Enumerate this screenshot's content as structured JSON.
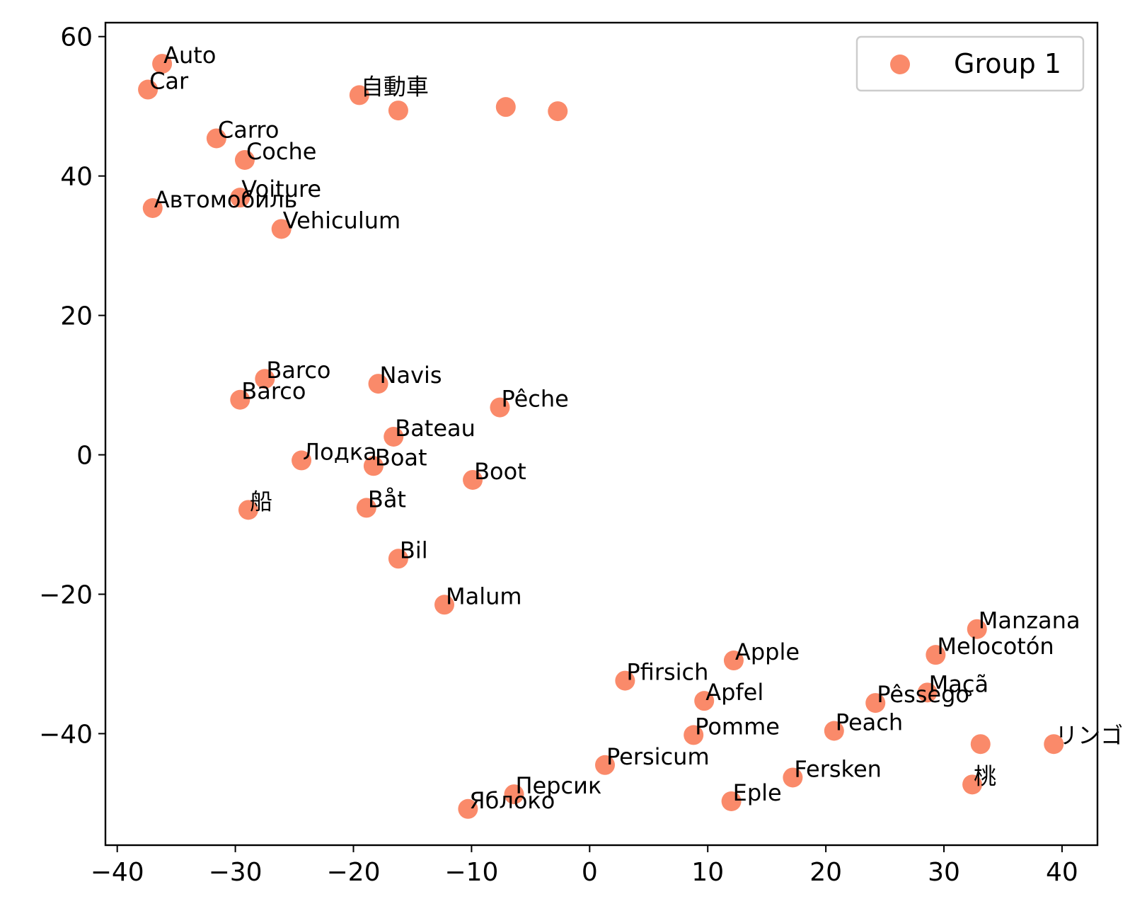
{
  "chart_data": {
    "type": "scatter",
    "title": "",
    "xlabel": "",
    "ylabel": "",
    "xlim": [
      -41,
      43
    ],
    "ylim": [
      -56,
      62
    ],
    "xticks": [
      -40,
      -30,
      -20,
      -10,
      0,
      10,
      20,
      30,
      40
    ],
    "yticks": [
      -40,
      -20,
      0,
      20,
      40,
      60
    ],
    "grid": false,
    "legend_position": "top-right",
    "series": [
      {
        "name": "Group 1",
        "color": "#fa8a6a",
        "points": [
          {
            "x": -36.2,
            "y": 56.1,
            "label": "Auto"
          },
          {
            "x": -37.4,
            "y": 52.4,
            "label": "Car"
          },
          {
            "x": -19.5,
            "y": 51.6,
            "label": "自動車"
          },
          {
            "x": -16.2,
            "y": 49.4,
            "label": ""
          },
          {
            "x": -7.1,
            "y": 49.9,
            "label": ""
          },
          {
            "x": -2.7,
            "y": 49.3,
            "label": ""
          },
          {
            "x": -31.6,
            "y": 45.4,
            "label": "Carro"
          },
          {
            "x": -29.2,
            "y": 42.3,
            "label": "Coche"
          },
          {
            "x": -29.6,
            "y": 36.9,
            "label": "Voiture"
          },
          {
            "x": -37.0,
            "y": 35.4,
            "label": "Автомобиль"
          },
          {
            "x": -26.1,
            "y": 32.4,
            "label": "Vehiculum"
          },
          {
            "x": -27.5,
            "y": 10.9,
            "label": "Barco"
          },
          {
            "x": -29.6,
            "y": 7.9,
            "label": "Barco"
          },
          {
            "x": -17.9,
            "y": 10.2,
            "label": "Navis"
          },
          {
            "x": -7.6,
            "y": 6.8,
            "label": "Pêche"
          },
          {
            "x": -16.6,
            "y": 2.6,
            "label": "Bateau"
          },
          {
            "x": -24.4,
            "y": -0.8,
            "label": "Лодка"
          },
          {
            "x": -18.3,
            "y": -1.6,
            "label": "Boat"
          },
          {
            "x": -9.9,
            "y": -3.6,
            "label": "Boot"
          },
          {
            "x": -28.9,
            "y": -7.9,
            "label": "船"
          },
          {
            "x": -18.9,
            "y": -7.6,
            "label": "Båt"
          },
          {
            "x": -16.2,
            "y": -14.9,
            "label": "Bil"
          },
          {
            "x": -12.3,
            "y": -21.5,
            "label": "Malum"
          },
          {
            "x": 32.8,
            "y": -25.0,
            "label": "Manzana"
          },
          {
            "x": 29.3,
            "y": -28.7,
            "label": "Melocotón"
          },
          {
            "x": 12.2,
            "y": -29.5,
            "label": "Apple"
          },
          {
            "x": 3.0,
            "y": -32.4,
            "label": "Pfirsich"
          },
          {
            "x": 28.6,
            "y": -34.1,
            "label": "Maçã"
          },
          {
            "x": 9.7,
            "y": -35.3,
            "label": "Apfel"
          },
          {
            "x": 24.2,
            "y": -35.6,
            "label": "Pêssego"
          },
          {
            "x": 20.7,
            "y": -39.6,
            "label": "Peach"
          },
          {
            "x": 8.8,
            "y": -40.2,
            "label": "Pomme"
          },
          {
            "x": 33.1,
            "y": -41.5,
            "label": ""
          },
          {
            "x": 39.3,
            "y": -41.5,
            "label": "リンゴ"
          },
          {
            "x": 1.3,
            "y": -44.5,
            "label": "Persicum"
          },
          {
            "x": 17.2,
            "y": -46.3,
            "label": "Fersken"
          },
          {
            "x": 32.4,
            "y": -47.3,
            "label": "桃"
          },
          {
            "x": -6.4,
            "y": -48.7,
            "label": "Персик"
          },
          {
            "x": 12.0,
            "y": -49.7,
            "label": "Eple"
          },
          {
            "x": -10.3,
            "y": -50.8,
            "label": "Яблоко"
          }
        ]
      }
    ]
  }
}
